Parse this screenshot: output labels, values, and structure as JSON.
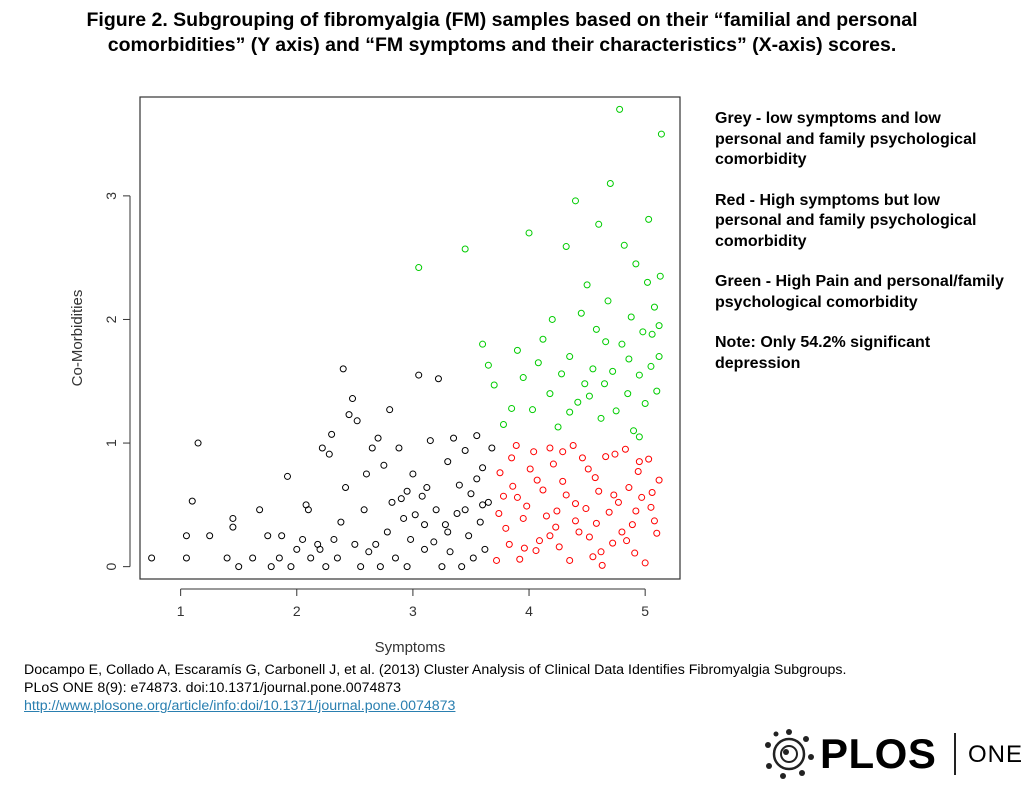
{
  "figure": {
    "title_line1": "Figure 2. Subgrouping of fibromyalgia (FM) samples based on their “familial and personal",
    "title_line2": "comorbidities” (Y axis) and “FM symptoms and their characteristics” (X-axis) scores."
  },
  "legend": {
    "grey": "Grey -  low symptoms and low personal and family psychological comorbidity",
    "red": "Red - High symptoms but low personal and family psychological comorbidity",
    "green": "Green - High Pain and personal/family psychological comorbidity",
    "note": "Note: Only 54.2% significant depression"
  },
  "citation": {
    "line1": "Docampo E, Collado A, Escaramís G, Carbonell J, et al. (2013) Cluster Analysis of Clinical Data Identifies Fibromyalgia Subgroups.",
    "line2": "PLoS ONE 8(9): e74873.  doi:10.1371/journal.pone.0074873",
    "link": "http://www.plosone.org/article/info:doi/10.1371/journal.pone.0074873"
  },
  "logo": {
    "wordmark": "PLOS",
    "suffix": "ONE"
  },
  "colors": {
    "grey": "#000000",
    "red": "#ff0000",
    "green": "#00cc00",
    "axis": "#333333"
  },
  "chart_data": {
    "type": "scatter",
    "xlabel": "Symptoms",
    "ylabel": "Co-Morbidities",
    "xlim": [
      0.65,
      5.3
    ],
    "ylim": [
      -0.1,
      3.8
    ],
    "x_ticks": [
      1,
      2,
      3,
      4,
      5
    ],
    "y_ticks": [
      0,
      1,
      2,
      3
    ],
    "marker": "open-circle",
    "series": [
      {
        "color": "#000000",
        "points": [
          [
            0.75,
            0.07
          ],
          [
            1.05,
            0.07
          ],
          [
            1.05,
            0.25
          ],
          [
            1.1,
            0.53
          ],
          [
            1.15,
            1.0
          ],
          [
            1.25,
            0.25
          ],
          [
            1.4,
            0.07
          ],
          [
            1.45,
            0.32
          ],
          [
            1.45,
            0.39
          ],
          [
            1.5,
            0.0
          ],
          [
            1.62,
            0.07
          ],
          [
            1.68,
            0.46
          ],
          [
            1.75,
            0.25
          ],
          [
            1.78,
            0.0
          ],
          [
            1.85,
            0.07
          ],
          [
            1.87,
            0.25
          ],
          [
            1.92,
            0.73
          ],
          [
            1.95,
            0.0
          ],
          [
            2.0,
            0.14
          ],
          [
            2.05,
            0.22
          ],
          [
            2.08,
            0.5
          ],
          [
            2.1,
            0.46
          ],
          [
            2.12,
            0.07
          ],
          [
            2.18,
            0.18
          ],
          [
            2.2,
            0.14
          ],
          [
            2.22,
            0.96
          ],
          [
            2.25,
            0.0
          ],
          [
            2.28,
            0.91
          ],
          [
            2.3,
            1.07
          ],
          [
            2.32,
            0.22
          ],
          [
            2.35,
            0.07
          ],
          [
            2.38,
            0.36
          ],
          [
            2.4,
            1.6
          ],
          [
            2.42,
            0.64
          ],
          [
            2.45,
            1.23
          ],
          [
            2.48,
            1.36
          ],
          [
            2.5,
            0.18
          ],
          [
            2.52,
            1.18
          ],
          [
            2.55,
            0.0
          ],
          [
            2.58,
            0.46
          ],
          [
            2.6,
            0.75
          ],
          [
            2.62,
            0.12
          ],
          [
            2.65,
            0.96
          ],
          [
            2.68,
            0.18
          ],
          [
            2.7,
            1.04
          ],
          [
            2.72,
            0.0
          ],
          [
            2.75,
            0.82
          ],
          [
            2.78,
            0.28
          ],
          [
            2.8,
            1.27
          ],
          [
            2.82,
            0.52
          ],
          [
            2.85,
            0.07
          ],
          [
            2.88,
            0.96
          ],
          [
            2.9,
            0.55
          ],
          [
            2.92,
            0.39
          ],
          [
            2.95,
            0.0
          ],
          [
            2.98,
            0.22
          ],
          [
            3.0,
            0.75
          ],
          [
            3.02,
            0.42
          ],
          [
            3.05,
            1.55
          ],
          [
            3.08,
            0.57
          ],
          [
            3.1,
            0.14
          ],
          [
            3.12,
            0.64
          ],
          [
            3.15,
            1.02
          ],
          [
            3.18,
            0.2
          ],
          [
            3.2,
            0.46
          ],
          [
            3.22,
            1.52
          ],
          [
            3.25,
            0.0
          ],
          [
            3.28,
            0.34
          ],
          [
            3.3,
            0.85
          ],
          [
            3.32,
            0.12
          ],
          [
            3.35,
            1.04
          ],
          [
            3.38,
            0.43
          ],
          [
            3.4,
            0.66
          ],
          [
            3.42,
            0.0
          ],
          [
            3.45,
            0.94
          ],
          [
            3.48,
            0.25
          ],
          [
            3.5,
            0.59
          ],
          [
            3.52,
            0.07
          ],
          [
            3.55,
            1.06
          ],
          [
            3.58,
            0.36
          ],
          [
            3.6,
            0.8
          ],
          [
            3.62,
            0.14
          ],
          [
            3.65,
            0.52
          ],
          [
            3.68,
            0.96
          ],
          [
            3.3,
            0.28
          ],
          [
            3.1,
            0.34
          ],
          [
            2.95,
            0.61
          ],
          [
            3.45,
            0.46
          ],
          [
            3.55,
            0.71
          ],
          [
            3.6,
            0.5
          ]
        ]
      },
      {
        "color": "#ff0000",
        "points": [
          [
            3.72,
            0.05
          ],
          [
            3.78,
            0.57
          ],
          [
            3.83,
            0.18
          ],
          [
            3.89,
            0.98
          ],
          [
            3.95,
            0.39
          ],
          [
            4.01,
            0.79
          ],
          [
            4.06,
            0.13
          ],
          [
            4.12,
            0.62
          ],
          [
            4.18,
            0.96
          ],
          [
            4.23,
            0.32
          ],
          [
            4.29,
            0.69
          ],
          [
            4.35,
            0.05
          ],
          [
            4.4,
            0.51
          ],
          [
            4.46,
            0.88
          ],
          [
            4.52,
            0.24
          ],
          [
            4.57,
            0.72
          ],
          [
            4.63,
            0.01
          ],
          [
            4.69,
            0.44
          ],
          [
            4.74,
            0.91
          ],
          [
            4.8,
            0.28
          ],
          [
            4.86,
            0.64
          ],
          [
            4.91,
            0.11
          ],
          [
            4.97,
            0.56
          ],
          [
            5.03,
            0.87
          ],
          [
            5.08,
            0.37
          ],
          [
            5.12,
            0.7
          ],
          [
            3.75,
            0.76
          ],
          [
            3.8,
            0.31
          ],
          [
            3.86,
            0.65
          ],
          [
            3.92,
            0.06
          ],
          [
            3.98,
            0.49
          ],
          [
            4.04,
            0.93
          ],
          [
            4.09,
            0.21
          ],
          [
            4.15,
            0.41
          ],
          [
            4.21,
            0.83
          ],
          [
            4.26,
            0.16
          ],
          [
            4.32,
            0.58
          ],
          [
            4.38,
            0.98
          ],
          [
            4.43,
            0.28
          ],
          [
            4.49,
            0.47
          ],
          [
            4.55,
            0.08
          ],
          [
            4.6,
            0.61
          ],
          [
            4.66,
            0.89
          ],
          [
            4.72,
            0.19
          ],
          [
            4.77,
            0.52
          ],
          [
            4.83,
            0.95
          ],
          [
            4.89,
            0.34
          ],
          [
            4.94,
            0.77
          ],
          [
            5.0,
            0.03
          ],
          [
            5.05,
            0.48
          ],
          [
            5.1,
            0.27
          ],
          [
            3.74,
            0.43
          ],
          [
            3.85,
            0.88
          ],
          [
            3.96,
            0.15
          ],
          [
            4.07,
            0.7
          ],
          [
            4.18,
            0.25
          ],
          [
            4.29,
            0.93
          ],
          [
            4.4,
            0.37
          ],
          [
            4.51,
            0.79
          ],
          [
            4.62,
            0.12
          ],
          [
            4.73,
            0.58
          ],
          [
            4.84,
            0.21
          ],
          [
            4.95,
            0.85
          ],
          [
            5.06,
            0.6
          ],
          [
            3.9,
            0.56
          ],
          [
            4.24,
            0.45
          ],
          [
            4.58,
            0.35
          ],
          [
            4.92,
            0.45
          ]
        ]
      },
      {
        "color": "#00cc00",
        "points": [
          [
            3.05,
            2.42
          ],
          [
            3.45,
            2.57
          ],
          [
            3.6,
            1.8
          ],
          [
            3.65,
            1.63
          ],
          [
            3.7,
            1.47
          ],
          [
            3.78,
            1.15
          ],
          [
            3.85,
            1.28
          ],
          [
            3.9,
            1.75
          ],
          [
            3.95,
            1.53
          ],
          [
            4.0,
            2.7
          ],
          [
            4.03,
            1.27
          ],
          [
            4.08,
            1.65
          ],
          [
            4.12,
            1.84
          ],
          [
            4.18,
            1.4
          ],
          [
            4.2,
            2.0
          ],
          [
            4.25,
            1.13
          ],
          [
            4.28,
            1.56
          ],
          [
            4.32,
            2.59
          ],
          [
            4.35,
            1.7
          ],
          [
            4.4,
            2.96
          ],
          [
            4.42,
            1.33
          ],
          [
            4.45,
            2.05
          ],
          [
            4.48,
            1.48
          ],
          [
            4.5,
            2.28
          ],
          [
            4.55,
            1.6
          ],
          [
            4.58,
            1.92
          ],
          [
            4.6,
            2.77
          ],
          [
            4.62,
            1.2
          ],
          [
            4.65,
            1.48
          ],
          [
            4.68,
            2.15
          ],
          [
            4.7,
            3.1
          ],
          [
            4.72,
            1.58
          ],
          [
            4.75,
            1.26
          ],
          [
            4.78,
            3.7
          ],
          [
            4.8,
            1.8
          ],
          [
            4.82,
            2.6
          ],
          [
            4.85,
            1.4
          ],
          [
            4.88,
            2.02
          ],
          [
            4.9,
            1.1
          ],
          [
            4.92,
            2.45
          ],
          [
            4.95,
            1.55
          ],
          [
            4.98,
            1.9
          ],
          [
            5.0,
            1.32
          ],
          [
            5.02,
            2.3
          ],
          [
            5.03,
            2.81
          ],
          [
            5.05,
            1.62
          ],
          [
            5.08,
            2.1
          ],
          [
            5.1,
            1.42
          ],
          [
            5.12,
            1.95
          ],
          [
            5.13,
            2.35
          ],
          [
            5.14,
            3.5
          ],
          [
            5.12,
            1.7
          ],
          [
            4.52,
            1.38
          ],
          [
            4.86,
            1.68
          ],
          [
            4.66,
            1.82
          ],
          [
            4.35,
            1.25
          ],
          [
            4.95,
            1.05
          ],
          [
            5.06,
            1.88
          ]
        ]
      }
    ]
  }
}
